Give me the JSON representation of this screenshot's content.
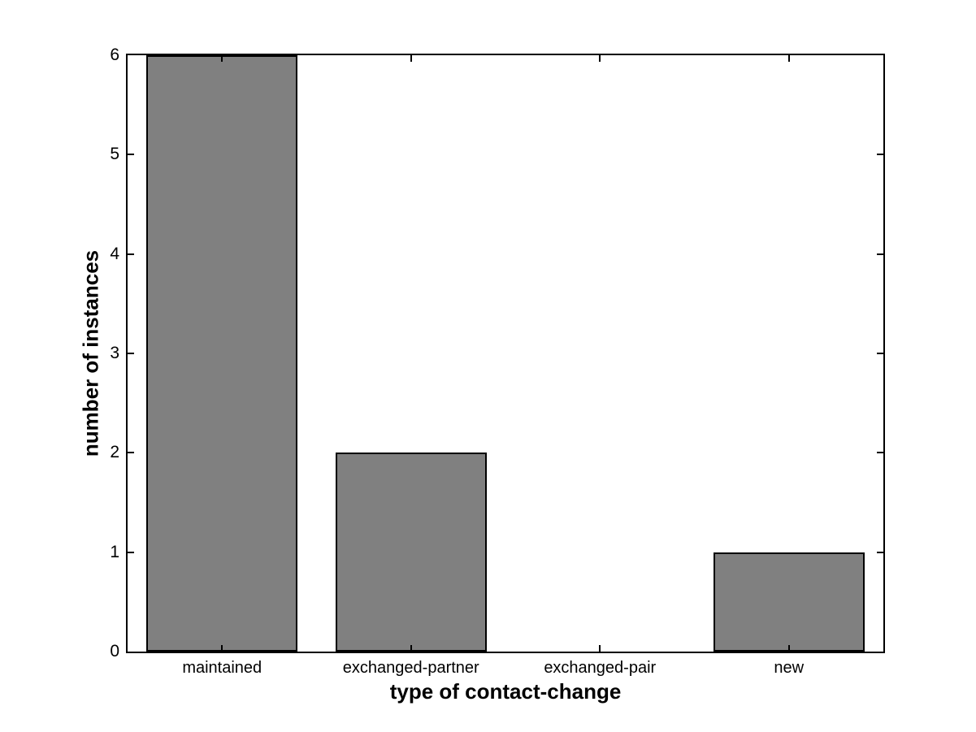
{
  "chart_data": {
    "type": "bar",
    "categories": [
      "maintained",
      "exchanged-partner",
      "exchanged-pair",
      "new"
    ],
    "values": [
      6,
      2,
      0,
      1
    ],
    "title": "",
    "xlabel": "type of contact-change",
    "ylabel": "number of instances",
    "ylim": [
      0,
      6
    ],
    "yticks": [
      0,
      1,
      2,
      3,
      4,
      5,
      6
    ],
    "bar_width_fraction": 0.8,
    "grid": false,
    "legend_position": "none",
    "colors": {
      "bar_fill": "#808080",
      "bar_edge": "#000000",
      "axis": "#000000",
      "background": "#ffffff",
      "text": "#000000"
    }
  }
}
